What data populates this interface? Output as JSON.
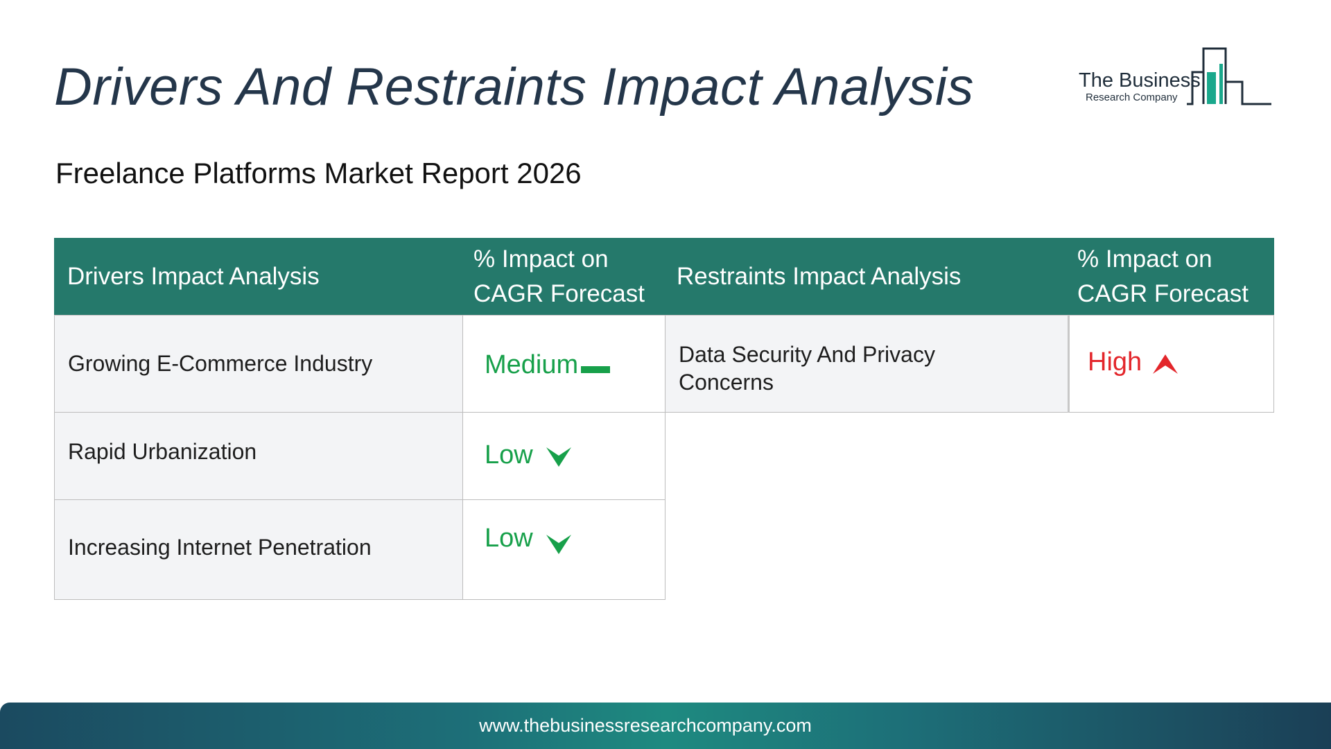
{
  "header": {
    "title": "Drivers And Restraints Impact Analysis",
    "subtitle": "Freelance Platforms Market Report 2026"
  },
  "logo": {
    "line1": "The Business",
    "line2": "Research Company",
    "icon": "bar-chart-building-icon"
  },
  "table": {
    "drivers_header": "Drivers Impact Analysis",
    "impact_header_line1": "% Impact on",
    "impact_header_line2": "CAGR Forecast",
    "restraints_header": "Restraints Impact Analysis",
    "drivers": [
      {
        "label": "Growing E-Commerce Industry",
        "impact": "Medium",
        "indicator": "dash-icon"
      },
      {
        "label": "Rapid Urbanization",
        "impact": "Low",
        "indicator": "arrow-down-icon"
      },
      {
        "label": "Increasing Internet Penetration",
        "impact": "Low",
        "indicator": "arrow-down-icon"
      }
    ],
    "restraints": [
      {
        "label_line1": "Data Security And Privacy",
        "label_line2": "Concerns",
        "impact": "High",
        "indicator": "arrow-up-icon"
      }
    ]
  },
  "colors": {
    "header_bg": "#25796b",
    "title": "#24364a",
    "impact_green": "#17a04a",
    "impact_red": "#e3262b",
    "row_bg": "#f3f4f6"
  },
  "footer": {
    "url": "www.thebusinessresearchcompany.com"
  }
}
